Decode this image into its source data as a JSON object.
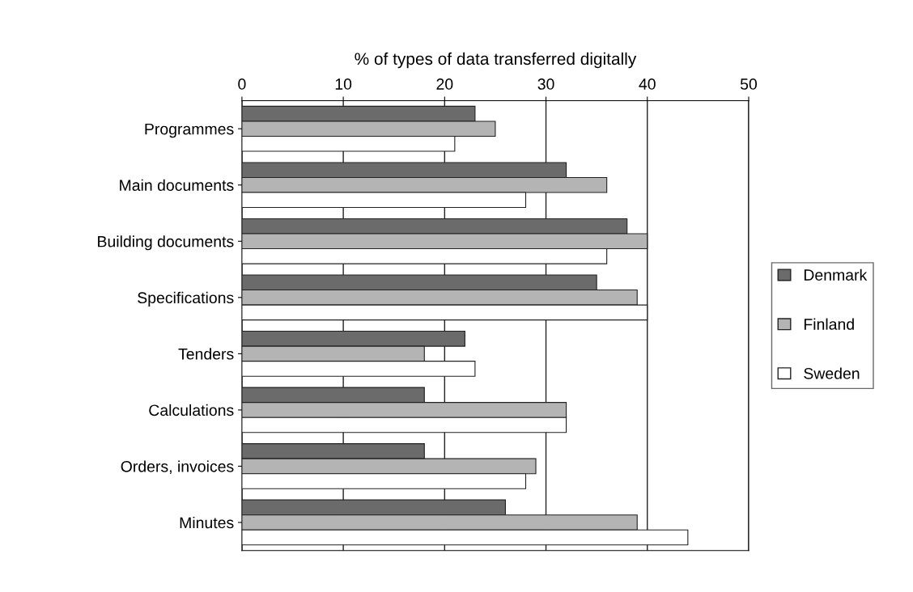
{
  "chart_data": {
    "type": "bar",
    "orientation": "horizontal",
    "xlabel": "% of types of data transferred digitally",
    "categories": [
      "Programmes",
      "Main documents",
      "Building documents",
      "Specifications",
      "Tenders",
      "Calculations",
      "Orders, invoices",
      "Minutes"
    ],
    "series": [
      {
        "name": "Denmark",
        "color": "#6b6b6b",
        "values": [
          23,
          32,
          38,
          35,
          22,
          18,
          18,
          26
        ]
      },
      {
        "name": "Finland",
        "color": "#b4b4b4",
        "values": [
          25,
          36,
          40,
          39,
          18,
          32,
          29,
          39
        ]
      },
      {
        "name": "Sweden",
        "color": "#ffffff",
        "values": [
          21,
          28,
          36,
          40,
          23,
          32,
          28,
          44
        ]
      }
    ],
    "xlim": [
      0,
      50
    ],
    "xticks": [
      0,
      10,
      20,
      30,
      40,
      50
    ],
    "grid": "x",
    "legend": "right"
  }
}
